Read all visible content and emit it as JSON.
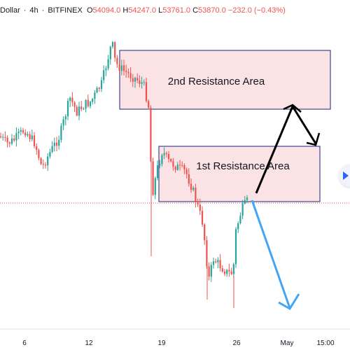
{
  "header": {
    "symbol": "Dollar",
    "interval": "4h",
    "exchange": "BITFINEX",
    "open_label": "O",
    "open": "54094.0",
    "high_label": "H",
    "high": "54247.0",
    "low_label": "L",
    "low": "53761.0",
    "close_label": "C",
    "close": "53870.0",
    "change": "−232.0 (−0.43%)"
  },
  "colors": {
    "up": "#26a69a",
    "down": "#ef5350",
    "zone_fill": "#fbdfe1",
    "zone_border": "#1a237e",
    "projection_up": "#000000",
    "projection_down": "#42a5f5",
    "price_line": "#ef5350"
  },
  "zones": [
    {
      "label": "2nd Resistance Area",
      "price_top": 72,
      "price_bottom": 156
    },
    {
      "label": "1st Resistance Area",
      "price_top": 209,
      "price_bottom": 288
    }
  ],
  "chart_data": {
    "type": "candlestick",
    "xlabel": "",
    "ylabel": "",
    "x_ticks": [
      "6",
      "12",
      "19",
      "26",
      "May",
      "15:00"
    ],
    "current_price_line": 53870.0,
    "projections": [
      {
        "name": "",
        "color": "black",
        "path": "breakout up to 2nd resistance then pullback"
      },
      {
        "name": "",
        "color": "blue",
        "path": "rejection down"
      }
    ]
  },
  "nav": {
    "icon": "chevron-right-icon"
  }
}
